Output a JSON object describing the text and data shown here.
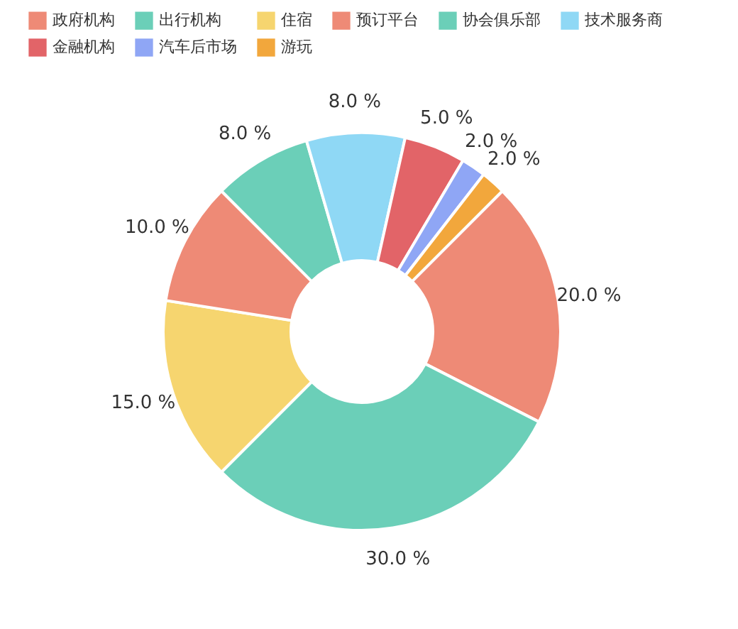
{
  "chart_data": {
    "type": "donut",
    "categories": [
      "政府机构",
      "出行机构",
      "住宿",
      "预订平台",
      "协会俱乐部",
      "技术服务商",
      "金融机构",
      "汽车后市场",
      "游玩"
    ],
    "values": [
      20,
      30,
      15,
      10,
      8,
      8,
      5,
      2,
      2
    ],
    "colors": [
      "#ee8a76",
      "#6bcfb8",
      "#f6d56f",
      "#ee8a76",
      "#6bcfb8",
      "#8fd8f5",
      "#e26468",
      "#8fa6f5",
      "#f2a73c"
    ],
    "value_labels": [
      "20.0 %",
      "30.0 %",
      "15.0 %",
      "10.0 %",
      "8.0 %",
      "8.0 %",
      "5.0 %",
      "2.0 %",
      "2.0 %"
    ],
    "legend": "top left"
  }
}
